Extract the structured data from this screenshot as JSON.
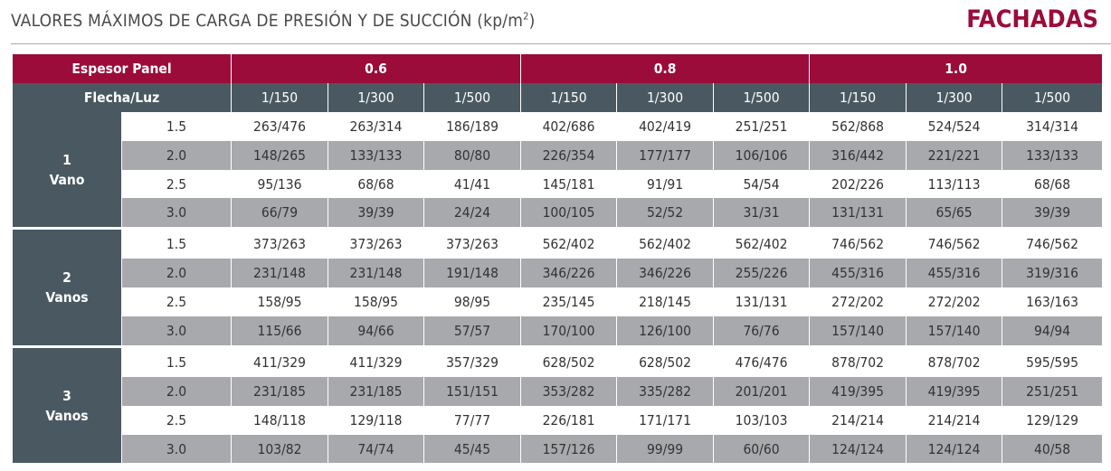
{
  "header": {
    "title_text": "VALORES MÁXIMOS DE CARGA DE PRESIÓN Y DE SUCCIÓN (kp/m",
    "title_sup": "2",
    "title_close": ")",
    "section": "FACHADAS"
  },
  "table": {
    "espesor_label": "Espesor Panel",
    "flecha_label": "Flecha/Luz",
    "thicknesses": [
      "0.6",
      "0.8",
      "1.0"
    ],
    "ratios": [
      "1/150",
      "1/300",
      "1/500",
      "1/150",
      "1/300",
      "1/500",
      "1/150",
      "1/300",
      "1/500"
    ],
    "groups": [
      {
        "number": "1",
        "label": "Vano",
        "rows": [
          {
            "luz": "1.5",
            "values": [
              "263/476",
              "263/314",
              "186/189",
              "402/686",
              "402/419",
              "251/251",
              "562/868",
              "524/524",
              "314/314"
            ]
          },
          {
            "luz": "2.0",
            "values": [
              "148/265",
              "133/133",
              "80/80",
              "226/354",
              "177/177",
              "106/106",
              "316/442",
              "221/221",
              "133/133"
            ]
          },
          {
            "luz": "2.5",
            "values": [
              "95/136",
              "68/68",
              "41/41",
              "145/181",
              "91/91",
              "54/54",
              "202/226",
              "113/113",
              "68/68"
            ]
          },
          {
            "luz": "3.0",
            "values": [
              "66/79",
              "39/39",
              "24/24",
              "100/105",
              "52/52",
              "31/31",
              "131/131",
              "65/65",
              "39/39"
            ]
          }
        ]
      },
      {
        "number": "2",
        "label": "Vanos",
        "rows": [
          {
            "luz": "1.5",
            "values": [
              "373/263",
              "373/263",
              "373/263",
              "562/402",
              "562/402",
              "562/402",
              "746/562",
              "746/562",
              "746/562"
            ]
          },
          {
            "luz": "2.0",
            "values": [
              "231/148",
              "231/148",
              "191/148",
              "346/226",
              "346/226",
              "255/226",
              "455/316",
              "455/316",
              "319/316"
            ]
          },
          {
            "luz": "2.5",
            "values": [
              "158/95",
              "158/95",
              "98/95",
              "235/145",
              "218/145",
              "131/131",
              "272/202",
              "272/202",
              "163/163"
            ]
          },
          {
            "luz": "3.0",
            "values": [
              "115/66",
              "94/66",
              "57/57",
              "170/100",
              "126/100",
              "76/76",
              "157/140",
              "157/140",
              "94/94"
            ]
          }
        ]
      },
      {
        "number": "3",
        "label": "Vanos",
        "rows": [
          {
            "luz": "1.5",
            "values": [
              "411/329",
              "411/329",
              "357/329",
              "628/502",
              "628/502",
              "476/476",
              "878/702",
              "878/702",
              "595/595"
            ]
          },
          {
            "luz": "2.0",
            "values": [
              "231/185",
              "231/185",
              "151/151",
              "353/282",
              "335/282",
              "201/201",
              "419/395",
              "419/395",
              "251/251"
            ]
          },
          {
            "luz": "2.5",
            "values": [
              "148/118",
              "129/118",
              "77/77",
              "226/181",
              "171/171",
              "103/103",
              "214/214",
              "214/214",
              "129/129"
            ]
          },
          {
            "luz": "3.0",
            "values": [
              "103/82",
              "74/74",
              "45/45",
              "157/126",
              "99/99",
              "60/60",
              "124/124",
              "124/124",
              "40/58"
            ]
          }
        ]
      }
    ]
  },
  "colors": {
    "accent": "#9b0c3a",
    "slate": "#4a5961",
    "stripe": "#a7a9ac"
  }
}
